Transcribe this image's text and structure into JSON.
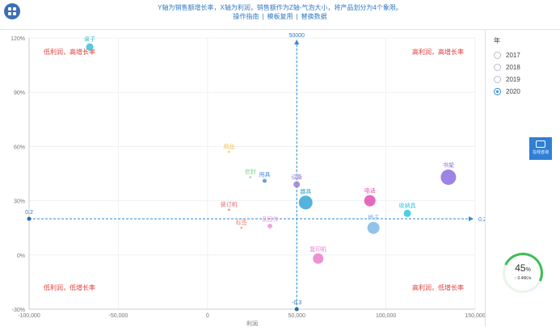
{
  "header": {
    "description": "Y轴为销售额增长率，X轴为利润，销售额作为Z轴-气泡大小，将产品划分为4个象限。",
    "links": [
      "操作指南",
      "模板复用",
      "替换数据"
    ]
  },
  "legend": {
    "title": "年",
    "years": [
      "2017",
      "2018",
      "2019",
      "2020"
    ],
    "selected": "2020"
  },
  "consult_label": "在线咨询",
  "gauge": {
    "percent": "45",
    "unit": "%",
    "speed": "↑ 0.46K/s",
    "value": 0.45
  },
  "chart_data": {
    "type": "scatter",
    "xlabel": "利润",
    "ylabel": "",
    "xlim": [
      -100000,
      150000
    ],
    "ylim": [
      -0.3,
      1.2
    ],
    "x_ticks": [
      "-100,000",
      "-50,000",
      "0",
      "50,000",
      "100,000",
      "150,000"
    ],
    "x_tick_values": [
      -100000,
      -50000,
      0,
      50000,
      100000,
      150000
    ],
    "y_ticks": [
      "-30%",
      "0%",
      "30%",
      "60%",
      "90%",
      "120%"
    ],
    "y_tick_values": [
      -0.3,
      0,
      0.3,
      0.6,
      0.9,
      1.2
    ],
    "markers": {
      "vertical": {
        "x": 50000,
        "label_top": "50000",
        "label_bottom": "-0.3"
      },
      "horizontal": {
        "y": 0.2,
        "label_left": "0.2",
        "label_right": "0.2"
      }
    },
    "quadrant_labels": {
      "top_left": "低利润，高增长率",
      "top_right": "高利润，高增长率",
      "bottom_left": "低利润，低增长率",
      "bottom_right": "高利润，低增长率"
    },
    "points": [
      {
        "name": "桌子",
        "x": -66000,
        "y": 1.15,
        "size": 8,
        "color": "#3bc1d6"
      },
      {
        "name": "用品",
        "x": 12000,
        "y": 0.57,
        "size": 1.5,
        "color": "#f2c14e"
      },
      {
        "name": "信封",
        "x": 24000,
        "y": 0.43,
        "size": 1.5,
        "color": "#7fcf8a"
      },
      {
        "name": "用具",
        "x": 32000,
        "y": 0.41,
        "size": 4,
        "color": "#4a90d9"
      },
      {
        "name": "装订机",
        "x": 12000,
        "y": 0.25,
        "size": 1.5,
        "color": "#e86a6a"
      },
      {
        "name": "标签",
        "x": 19000,
        "y": 0.15,
        "size": 1.5,
        "color": "#f08a70"
      },
      {
        "name": "系固件",
        "x": 35000,
        "y": 0.16,
        "size": 5,
        "color": "#e99ad6"
      },
      {
        "name": "设备",
        "x": 50000,
        "y": 0.39,
        "size": 7,
        "color": "#9b7ed9"
      },
      {
        "name": "器具",
        "x": 55000,
        "y": 0.29,
        "size": 16,
        "color": "#36a6d6"
      },
      {
        "name": "复印机",
        "x": 62000,
        "y": -0.02,
        "size": 12,
        "color": "#e87fd0"
      },
      {
        "name": "电话",
        "x": 91000,
        "y": 0.3,
        "size": 13,
        "color": "#e14fb1"
      },
      {
        "name": "椅子",
        "x": 93000,
        "y": 0.15,
        "size": 14,
        "color": "#7fb8e8"
      },
      {
        "name": "收纳具",
        "x": 112000,
        "y": 0.23,
        "size": 8,
        "color": "#2ec6e0"
      },
      {
        "name": "书架",
        "x": 135000,
        "y": 0.43,
        "size": 18,
        "color": "#8a6fe0"
      }
    ]
  }
}
